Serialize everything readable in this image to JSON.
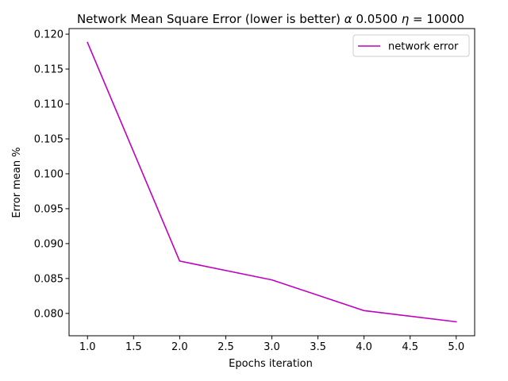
{
  "chart_data": {
    "type": "line",
    "title": "Network Mean Square Error (lower is better) α 0.0500  η = 10000",
    "title_parts": {
      "prefix": "Network Mean Square Error (lower is better) ",
      "alpha_symbol": "α",
      "alpha_value": " 0.0500  ",
      "eta_symbol": "η",
      "eta_value": " = 10000"
    },
    "xlabel": "Epochs iteration",
    "ylabel": "Error mean %",
    "xlim": [
      0.8,
      5.2
    ],
    "ylim": [
      0.0768,
      0.1208
    ],
    "xticks": [
      1.0,
      1.5,
      2.0,
      2.5,
      3.0,
      3.5,
      4.0,
      4.5,
      5.0
    ],
    "xtick_labels": [
      "1.0",
      "1.5",
      "2.0",
      "2.5",
      "3.0",
      "3.5",
      "4.0",
      "4.5",
      "5.0"
    ],
    "yticks": [
      0.08,
      0.085,
      0.09,
      0.095,
      0.1,
      0.105,
      0.11,
      0.115,
      0.12
    ],
    "ytick_labels": [
      "0.080",
      "0.085",
      "0.090",
      "0.095",
      "0.100",
      "0.105",
      "0.110",
      "0.115",
      "0.120"
    ],
    "grid": false,
    "legend_position": "top-right",
    "series": [
      {
        "name": "network error",
        "color": "#bf00bf",
        "x": [
          1.0,
          2.0,
          3.0,
          4.0,
          5.0
        ],
        "y": [
          0.1188,
          0.0875,
          0.0848,
          0.0804,
          0.0788
        ]
      }
    ]
  }
}
